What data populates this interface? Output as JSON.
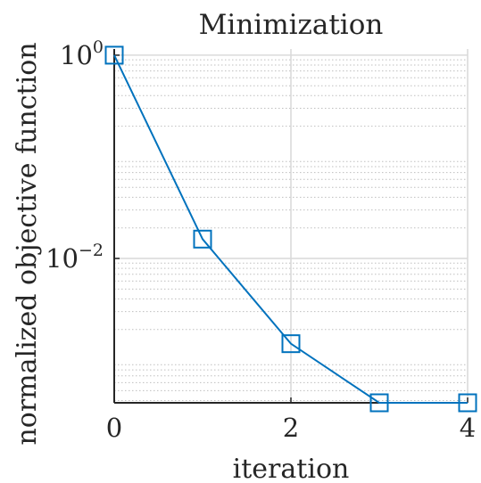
{
  "chart_data": {
    "type": "line",
    "title": "Minimization",
    "xlabel": "iteration",
    "ylabel": "normalized objective function",
    "x": [
      0,
      1,
      2,
      3,
      4
    ],
    "series": [
      {
        "values": [
          1.0,
          0.0155,
          0.00145,
          0.00038,
          0.00038
        ]
      }
    ],
    "xlim": [
      0,
      4
    ],
    "ylim": [
      0.00038,
      1.15
    ],
    "yscale": "log",
    "xticks": [
      0,
      2,
      4
    ],
    "xtick_labels": [
      "0",
      "2",
      "4"
    ],
    "yticks": [
      1,
      0.01
    ],
    "ytick_labels": [
      {
        "base": "10",
        "exp": "0"
      },
      {
        "base": "10",
        "exp": "−2"
      }
    ],
    "grid": true,
    "minor_grid": true,
    "marker": "square",
    "line_color": "#0072BD",
    "grid_color": "#d9d9d9",
    "axis_color": "#262626"
  }
}
